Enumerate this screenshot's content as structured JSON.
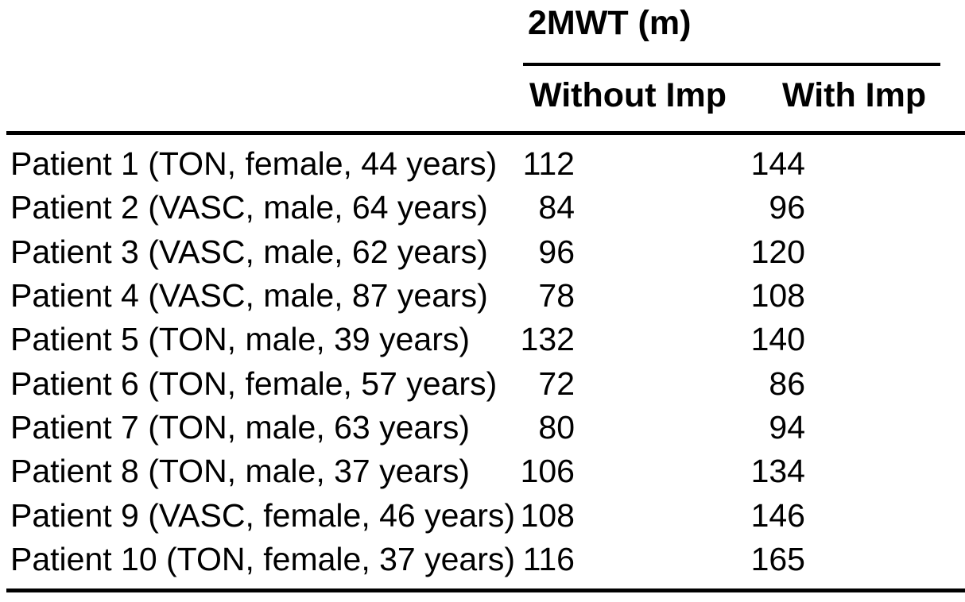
{
  "table": {
    "group_header": "2MWT (m)",
    "columns": [
      "Without Imp",
      "With Imp"
    ],
    "rows": [
      {
        "label": "Patient 1 (TON, female, 44 years)",
        "without_imp": "112",
        "with_imp": "144"
      },
      {
        "label": "Patient 2 (VASC, male, 64 years)",
        "without_imp": "84",
        "with_imp": "96"
      },
      {
        "label": "Patient 3 (VASC, male, 62 years)",
        "without_imp": "96",
        "with_imp": "120"
      },
      {
        "label": "Patient 4 (VASC, male, 87 years)",
        "without_imp": "78",
        "with_imp": "108"
      },
      {
        "label": "Patient 5 (TON, male, 39 years)",
        "without_imp": "132",
        "with_imp": "140"
      },
      {
        "label": "Patient 6 (TON, female, 57 years)",
        "without_imp": "72",
        "with_imp": "86"
      },
      {
        "label": "Patient 7 (TON, male, 63 years)",
        "without_imp": "80",
        "with_imp": "94"
      },
      {
        "label": "Patient 8 (TON, male, 37 years)",
        "without_imp": "106",
        "with_imp": "134"
      },
      {
        "label": "Patient 9 (VASC, female, 46 years)",
        "without_imp": "108",
        "with_imp": "146"
      },
      {
        "label": "Patient 10 (TON, female, 37 years)",
        "without_imp": "116",
        "with_imp": "165"
      }
    ],
    "colors": {
      "text": "#000000",
      "rule": "#000000",
      "background": "#ffffff"
    }
  }
}
